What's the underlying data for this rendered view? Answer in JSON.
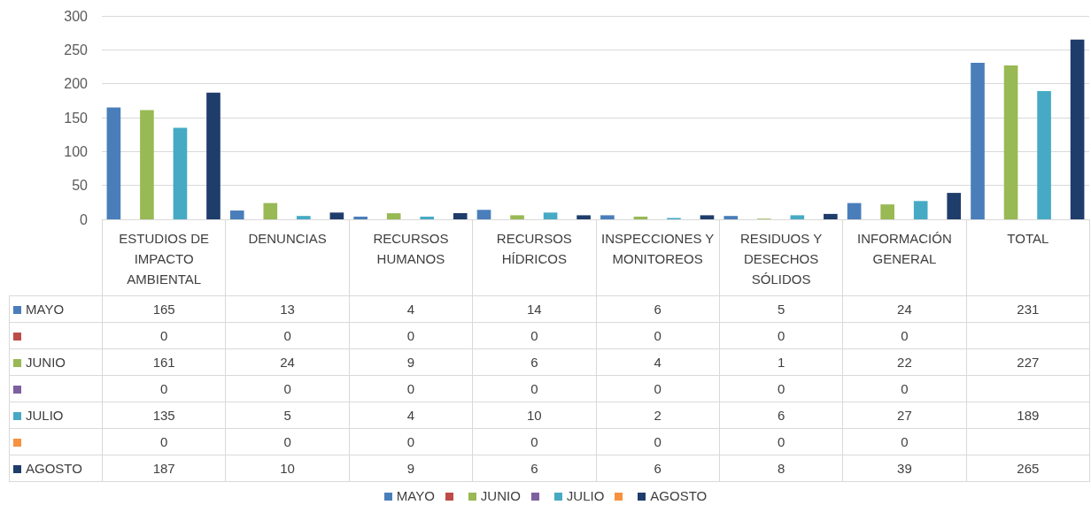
{
  "chart_data": {
    "type": "bar",
    "categories": [
      "ESTUDIOS DE IMPACTO AMBIENTAL",
      "DENUNCIAS",
      "RECURSOS HUMANOS",
      "RECURSOS HÍDRICOS",
      "INSPECCIONES Y MONITOREOS",
      "RESIDUOS Y DESECHOS SÓLIDOS",
      "INFORMACIÓN GENERAL",
      "TOTAL"
    ],
    "series": [
      {
        "name": "MAYO",
        "color": "#4a7ebb",
        "values": [
          165,
          13,
          4,
          14,
          6,
          5,
          24,
          231
        ]
      },
      {
        "color": "#be4b48",
        "values": [
          0,
          0,
          0,
          0,
          0,
          0,
          0,
          null
        ]
      },
      {
        "name": "JUNIO",
        "color": "#98b954",
        "values": [
          161,
          24,
          9,
          6,
          4,
          1,
          22,
          227
        ]
      },
      {
        "color": "#7d60a0",
        "values": [
          0,
          0,
          0,
          0,
          0,
          0,
          0,
          null
        ]
      },
      {
        "name": "JULIO",
        "color": "#46aac5",
        "values": [
          135,
          5,
          4,
          10,
          2,
          6,
          27,
          189
        ]
      },
      {
        "color": "#f69240",
        "values": [
          0,
          0,
          0,
          0,
          0,
          0,
          0,
          null
        ]
      },
      {
        "name": "AGOSTO",
        "color": "#1f3d6b",
        "values": [
          187,
          10,
          9,
          6,
          6,
          8,
          39,
          265
        ]
      }
    ],
    "ylim": [
      0,
      300
    ],
    "yticks": [
      0,
      50,
      100,
      150,
      200,
      250,
      300
    ],
    "grid": "y",
    "legend": "bottom",
    "data_labels": true
  }
}
